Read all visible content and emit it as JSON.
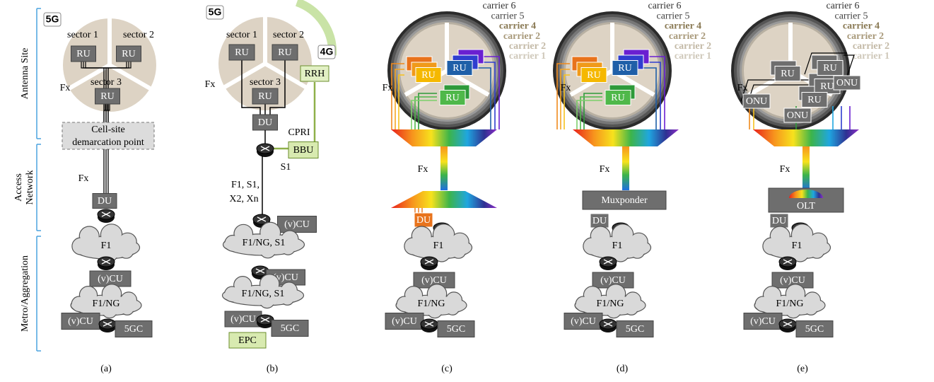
{
  "side_labels": {
    "antenna_site": "Antenna Site",
    "access_network": [
      "Access",
      "Network"
    ],
    "metro_aggregation": "Metro/Aggregation"
  },
  "panel_a": {
    "badge": "5G",
    "sectors": [
      "sector 1",
      "sector 2",
      "sector 3"
    ],
    "ru": [
      "RU",
      "RU",
      "RU"
    ],
    "fx": [
      "Fx",
      "Fx"
    ],
    "demarcation": [
      "Cell-site",
      "demarcation point"
    ],
    "du": "DU",
    "cloud_1": "F1",
    "vcu_1": "(v)CU",
    "cloud_2": "F1/NG",
    "vcu_2": "(v)CU",
    "core": "5GC",
    "caption": "(a)"
  },
  "panel_b": {
    "badge_5g": "5G",
    "badge_4g": "4G",
    "sectors": [
      "sector 1",
      "sector 2",
      "sector 3"
    ],
    "ru": [
      "RU",
      "RU",
      "RU"
    ],
    "rrh": "RRH",
    "fx": "Fx",
    "du": "DU",
    "cpri": "CPRI",
    "bbu": "BBU",
    "s1": "S1",
    "interfaces": [
      "F1, S1,",
      "X2, Xn"
    ],
    "vcu": [
      "(v)CU",
      "(v)CU",
      "(v)CU"
    ],
    "clouds": [
      "F1/NG, S1",
      "F1/NG, S1"
    ],
    "core": "5GC",
    "epc": "EPC",
    "caption": "(b)"
  },
  "panel_c": {
    "carriers": [
      "carrier 6",
      "carrier 5",
      "carrier 4",
      "carrier 2",
      "carrier 2",
      "carrier 1"
    ],
    "ru": [
      "RU",
      "RU",
      "RU"
    ],
    "fx": [
      "Fx",
      "Fx"
    ],
    "du": "DU",
    "cloud_1": "F1",
    "vcu_1": "(v)CU",
    "cloud_2": "F1/NG",
    "vcu_2": "(v)CU",
    "core": "5GC",
    "caption": "(c)"
  },
  "panel_d": {
    "carriers": [
      "carrier 6",
      "carrier 5",
      "carrier 4",
      "carrier 2",
      "carrier 2",
      "carrier 1"
    ],
    "ru": [
      "RU",
      "RU",
      "RU"
    ],
    "fx": [
      "Fx",
      "Fx"
    ],
    "muxponder": "Muxponder",
    "du": "DU",
    "cloud_1": "F1",
    "vcu_1": "(v)CU",
    "cloud_2": "F1/NG",
    "vcu_2": "(v)CU",
    "core": "5GC",
    "caption": "(d)"
  },
  "panel_e": {
    "carriers": [
      "carrier 6",
      "carrier 5",
      "carrier 4",
      "carrier 2",
      "carrier 2",
      "carrier 1"
    ],
    "ru": [
      "RU",
      "RU",
      "RU",
      "RU"
    ],
    "onu": [
      "ONU",
      "ONU",
      "ONU"
    ],
    "fx": [
      "Fx",
      "Fx"
    ],
    "olt": "OLT",
    "du": "DU",
    "cloud_1": "F1",
    "vcu_1": "(v)CU",
    "cloud_2": "F1/NG",
    "vcu_2": "(v)CU",
    "core": "5GC",
    "caption": "(e)"
  }
}
